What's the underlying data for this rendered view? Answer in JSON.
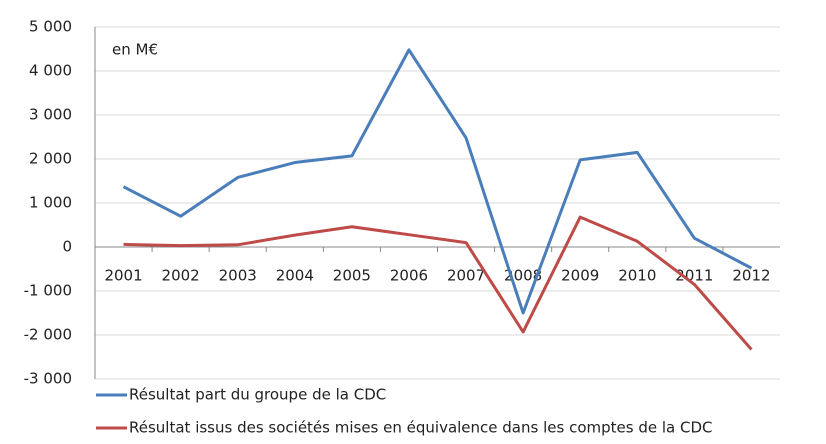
{
  "chart_data": {
    "type": "line",
    "annotation": "en M€",
    "categories": [
      "2001",
      "2002",
      "2003",
      "2004",
      "2005",
      "2006",
      "2007",
      "2008",
      "2009",
      "2010",
      "2011",
      "2012"
    ],
    "series": [
      {
        "name": "Résultat part du groupe de la CDC",
        "color": "#4a7ebb",
        "values": [
          1370,
          700,
          1580,
          1920,
          2070,
          4480,
          2480,
          -1500,
          1980,
          2150,
          200,
          -480
        ]
      },
      {
        "name": "Résultat issus des sociétés mises en équivalence dans les comptes de la CDC",
        "color": "#be4b48",
        "values": [
          60,
          30,
          50,
          270,
          460,
          280,
          100,
          -1930,
          680,
          130,
          -850,
          -2330
        ]
      }
    ],
    "ylim": [
      -3000,
      5000
    ],
    "yticks": [
      {
        "value": 5000,
        "label": "5 000"
      },
      {
        "value": 4000,
        "label": "4 000"
      },
      {
        "value": 3000,
        "label": "3 000"
      },
      {
        "value": 2000,
        "label": "2 000"
      },
      {
        "value": 1000,
        "label": "1 000"
      },
      0,
      {
        "value": -1000,
        "label": "-1 000"
      },
      {
        "value": -2000,
        "label": "-2 000"
      },
      {
        "value": -3000,
        "label": "-3 000"
      }
    ],
    "grid": true
  }
}
